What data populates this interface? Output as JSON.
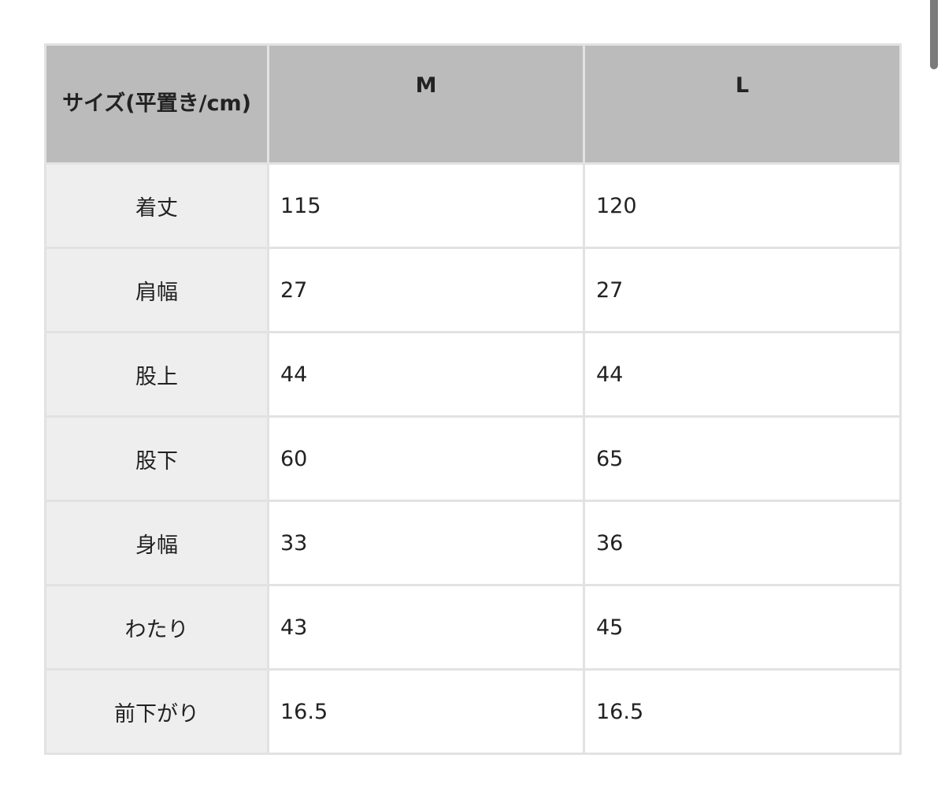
{
  "table": {
    "headers": [
      "サイズ(平置き/cm)",
      "M",
      "L"
    ],
    "rows": [
      {
        "label": "着丈",
        "m": "115",
        "l": "120"
      },
      {
        "label": "肩幅",
        "m": "27",
        "l": "27"
      },
      {
        "label": "股上",
        "m": "44",
        "l": "44"
      },
      {
        "label": "股下",
        "m": "60",
        "l": "65"
      },
      {
        "label": "身幅",
        "m": "33",
        "l": "36"
      },
      {
        "label": "わたり",
        "m": "43",
        "l": "45"
      },
      {
        "label": "前下がり",
        "m": "16.5",
        "l": "16.5"
      }
    ]
  },
  "colors": {
    "header_bg": "#bbbbbb",
    "row_header_bg": "#eeeeee",
    "border": "#e2e2e2"
  }
}
